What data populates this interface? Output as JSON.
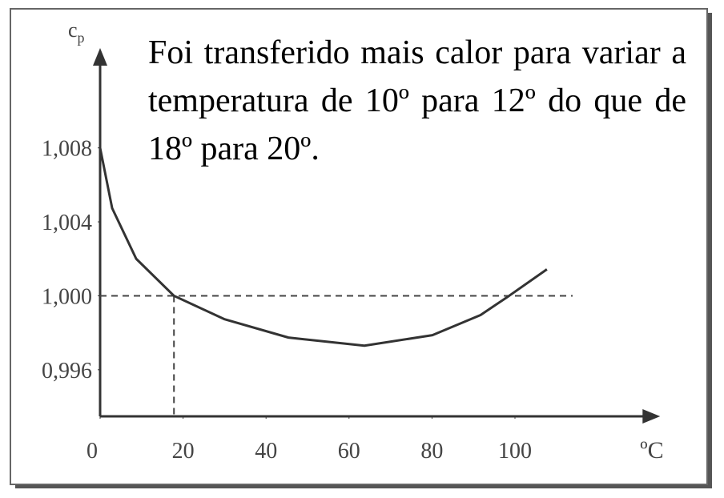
{
  "chart_data": {
    "type": "line",
    "annotation": "Foi transferido mais calor para variar a temperatura de 10º para 12º do que de 18º para 20º.",
    "ylabel": {
      "symbol": "c",
      "subscript": "p"
    },
    "xlabel": "ºC",
    "x": [
      0,
      2.9,
      8.7,
      17.8,
      29.9,
      45.4,
      63.7,
      80.1,
      91.7,
      98.6,
      107.7
    ],
    "series": [
      {
        "color": "#333333",
        "values": [
          1.008,
          1.00474,
          1.002,
          1.0,
          0.99874,
          0.99774,
          0.9973,
          0.99787,
          0.99896,
          1.0,
          1.00143
        ]
      }
    ],
    "xlim": [
      0,
      135
    ],
    "ylim": [
      0.99348,
      1.0134
    ],
    "xticks": [
      0,
      20,
      40,
      60,
      80,
      100
    ],
    "yticks": [
      {
        "value": 0.996,
        "label": "0,996"
      },
      {
        "value": 1.0,
        "label": "1,000"
      },
      {
        "value": 1.004,
        "label": "1,004"
      },
      {
        "value": 1.008,
        "label": "1,008"
      }
    ],
    "reference_lines": {
      "y": 1.0,
      "x": 17.8,
      "y_line_end": 113.9
    }
  }
}
